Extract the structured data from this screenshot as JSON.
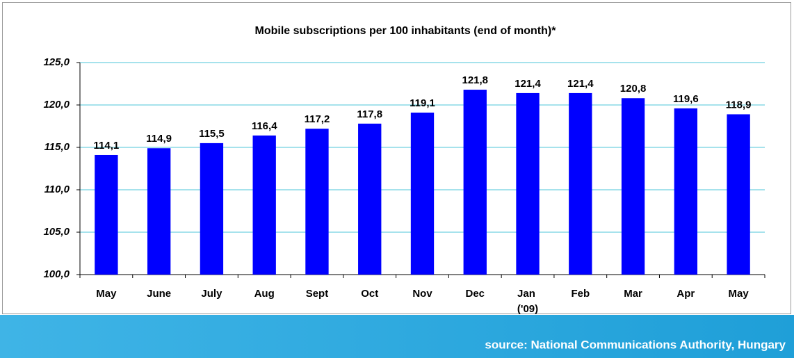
{
  "chart_data": {
    "type": "bar",
    "title": "Mobile subscriptions per 100 inhabitants (end of month)*",
    "categories": [
      "May",
      "June",
      "July",
      "Aug",
      "Sept",
      "Oct",
      "Nov",
      "Dec",
      "Jan ('09)",
      "Feb",
      "Mar",
      "Apr",
      "May"
    ],
    "values": [
      114.1,
      114.9,
      115.5,
      116.4,
      117.2,
      117.8,
      119.1,
      121.8,
      121.4,
      121.4,
      120.8,
      119.6,
      118.9
    ],
    "value_labels": [
      "114,1",
      "114,9",
      "115,5",
      "116,4",
      "117,2",
      "117,8",
      "119,1",
      "121,8",
      "121,4",
      "121,4",
      "120,8",
      "119,6",
      "118,9"
    ],
    "color": "#0000ff",
    "ylim": [
      100,
      125
    ],
    "yticks": [
      {
        "value": 100,
        "label": "100,0"
      },
      {
        "value": 105,
        "label": "105,0"
      },
      {
        "value": 110,
        "label": "110,0"
      },
      {
        "value": 115,
        "label": "115,0"
      },
      {
        "value": 120,
        "label": "120,0"
      },
      {
        "value": 125,
        "label": "125,0"
      }
    ],
    "grid": true,
    "source": "source: National Communications Authority, Hungary"
  }
}
